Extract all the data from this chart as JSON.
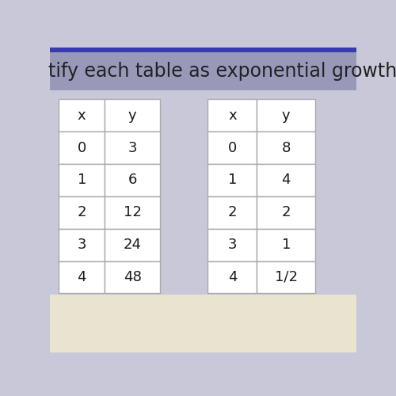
{
  "title": "tify each table as exponential growth or d",
  "title_fontsize": 17,
  "title_color": "#222222",
  "bg_top_strip": "#3a3ab0",
  "bg_title_band": "#9898b8",
  "bg_main": "#c8c8d8",
  "bg_bottom": "#e8e4d0",
  "table1": {
    "headers": [
      "x",
      "y"
    ],
    "rows": [
      [
        "0",
        "3"
      ],
      [
        "1",
        "6"
      ],
      [
        "2",
        "12"
      ],
      [
        "3",
        "24"
      ],
      [
        "4",
        "48"
      ]
    ]
  },
  "table2": {
    "headers": [
      "x",
      "y"
    ],
    "rows": [
      [
        "0",
        "8"
      ],
      [
        "1",
        "4"
      ],
      [
        "2",
        "2"
      ],
      [
        "3",
        "1"
      ],
      [
        "4",
        "1/2"
      ]
    ]
  },
  "cell_fontsize": 13,
  "table_edge_color": "#aaaaaa",
  "cell_text_color": "#1a1a1a",
  "cell_bg": "#ffffff"
}
